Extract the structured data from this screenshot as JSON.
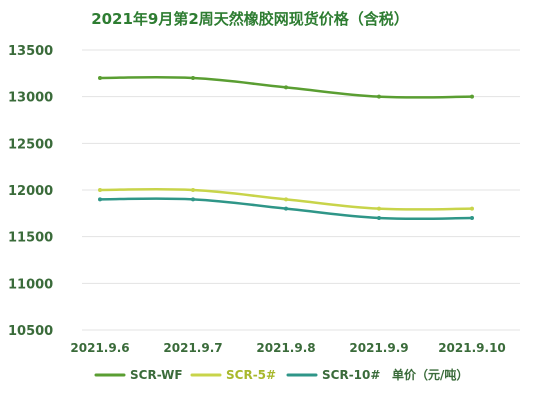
{
  "chart_data": {
    "type": "line",
    "title": "2021年9月第2周天然橡胶网现货价格（含税）",
    "categories": [
      "2021.9.6",
      "2021.9.7",
      "2021.9.8",
      "2021.9.9",
      "2021.9.10"
    ],
    "ylim": [
      10500,
      13500
    ],
    "yticks": [
      10500,
      11000,
      11500,
      12000,
      12500,
      13000,
      13500
    ],
    "grid": true,
    "legend_position": "bottom",
    "series": [
      {
        "name": "SCR-WF",
        "values": [
          13200,
          13200,
          13100,
          13000,
          13000
        ],
        "color": "#5a9e32"
      },
      {
        "name": "SCR-5#",
        "values": [
          12000,
          12000,
          11900,
          11800,
          11800
        ],
        "color": "#c8d44a"
      },
      {
        "name": "SCR-10#",
        "values": [
          11900,
          11900,
          11800,
          11700,
          11700
        ],
        "color": "#2f9688"
      }
    ],
    "unit_label": "单价（元/吨）"
  },
  "colors": {
    "title": "#2e7d32",
    "axis_text": "#3a6b3a",
    "grid": "#e3e3e3"
  }
}
